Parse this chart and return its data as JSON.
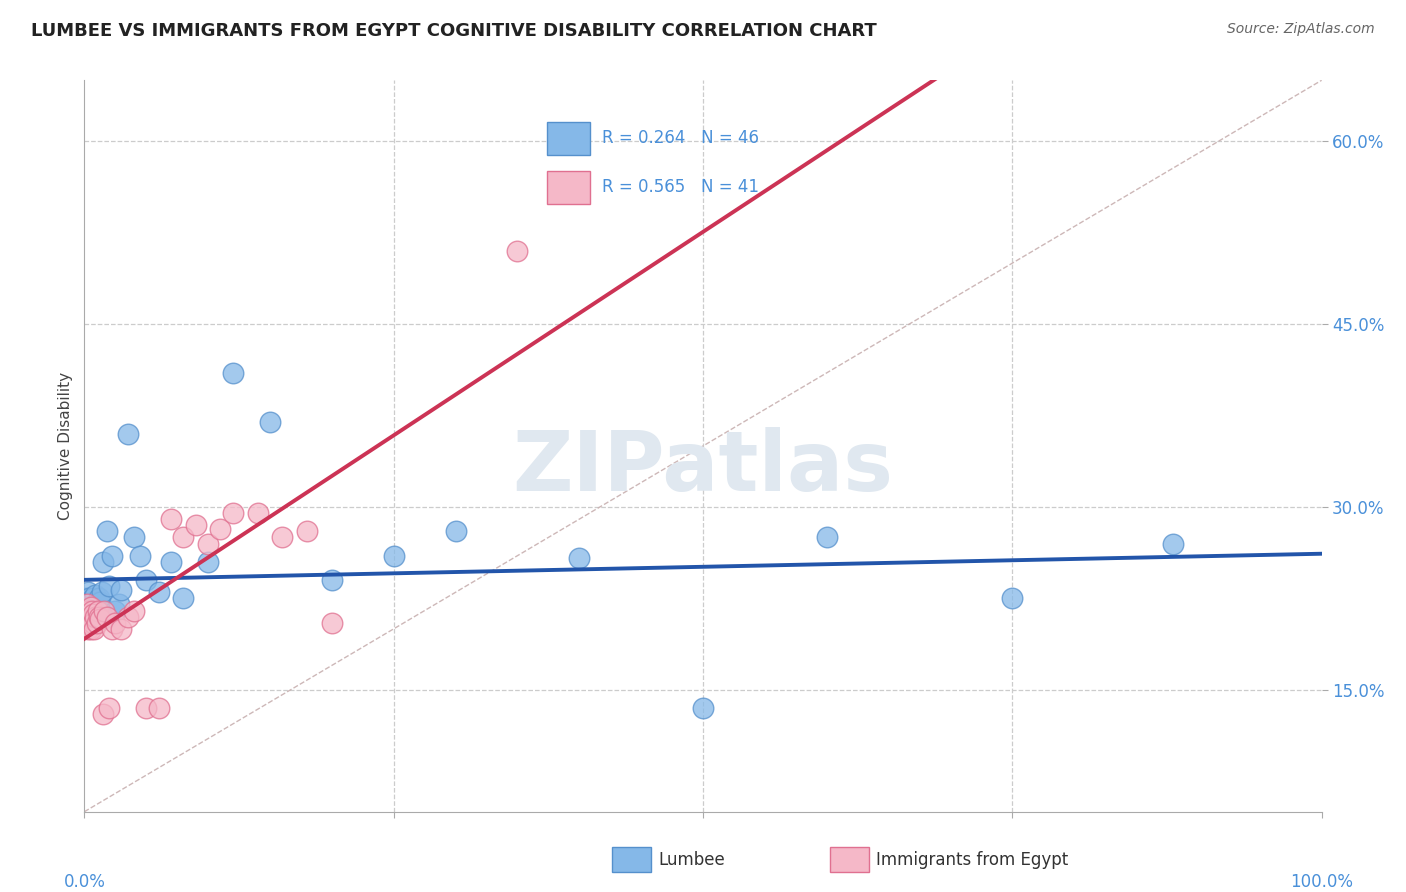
{
  "title": "LUMBEE VS IMMIGRANTS FROM EGYPT COGNITIVE DISABILITY CORRELATION CHART",
  "source": "Source: ZipAtlas.com",
  "ylabel": "Cognitive Disability",
  "background_color": "#ffffff",
  "grid_color": "#cccccc",
  "watermark_text": "ZIPatlas",
  "lumbee_color": "#85b8e8",
  "lumbee_edge_color": "#5590cc",
  "egypt_color": "#f5b8c8",
  "egypt_edge_color": "#e07090",
  "lumbee_line_color": "#2255aa",
  "egypt_line_color": "#cc3355",
  "diagonal_color": "#c8b0b0",
  "R_lumbee": 0.264,
  "N_lumbee": 46,
  "R_egypt": 0.565,
  "N_egypt": 41,
  "lumbee_x": [
    0.001,
    0.002,
    0.003,
    0.003,
    0.004,
    0.004,
    0.005,
    0.005,
    0.006,
    0.006,
    0.007,
    0.007,
    0.008,
    0.009,
    0.01,
    0.01,
    0.011,
    0.012,
    0.013,
    0.014,
    0.015,
    0.016,
    0.018,
    0.02,
    0.022,
    0.025,
    0.028,
    0.03,
    0.035,
    0.04,
    0.045,
    0.05,
    0.06,
    0.07,
    0.08,
    0.1,
    0.12,
    0.15,
    0.2,
    0.25,
    0.3,
    0.4,
    0.5,
    0.6,
    0.75,
    0.88
  ],
  "lumbee_y": [
    0.225,
    0.215,
    0.22,
    0.23,
    0.21,
    0.225,
    0.22,
    0.215,
    0.222,
    0.218,
    0.22,
    0.225,
    0.215,
    0.228,
    0.222,
    0.22,
    0.218,
    0.225,
    0.222,
    0.23,
    0.255,
    0.21,
    0.28,
    0.235,
    0.26,
    0.215,
    0.22,
    0.232,
    0.36,
    0.275,
    0.26,
    0.24,
    0.23,
    0.255,
    0.225,
    0.255,
    0.41,
    0.37,
    0.24,
    0.26,
    0.28,
    0.258,
    0.135,
    0.275,
    0.225,
    0.27
  ],
  "egypt_x": [
    0.001,
    0.002,
    0.002,
    0.003,
    0.003,
    0.004,
    0.004,
    0.005,
    0.005,
    0.006,
    0.006,
    0.007,
    0.007,
    0.008,
    0.009,
    0.01,
    0.011,
    0.012,
    0.013,
    0.015,
    0.016,
    0.018,
    0.02,
    0.022,
    0.025,
    0.03,
    0.035,
    0.04,
    0.05,
    0.06,
    0.07,
    0.08,
    0.09,
    0.1,
    0.11,
    0.12,
    0.14,
    0.16,
    0.18,
    0.2,
    0.35
  ],
  "egypt_y": [
    0.215,
    0.21,
    0.22,
    0.2,
    0.215,
    0.21,
    0.205,
    0.218,
    0.2,
    0.208,
    0.215,
    0.212,
    0.205,
    0.2,
    0.21,
    0.205,
    0.215,
    0.21,
    0.208,
    0.13,
    0.215,
    0.21,
    0.135,
    0.2,
    0.205,
    0.2,
    0.21,
    0.215,
    0.135,
    0.135,
    0.29,
    0.275,
    0.285,
    0.27,
    0.282,
    0.295,
    0.295,
    0.275,
    0.28,
    0.205,
    0.51
  ],
  "ylim": [
    0.05,
    0.65
  ],
  "xlim": [
    0.0,
    1.0
  ],
  "yticks": [
    0.15,
    0.3,
    0.45,
    0.6
  ],
  "ytick_labels": [
    "15.0%",
    "30.0%",
    "45.0%",
    "60.0%"
  ],
  "xticks": [
    0.0,
    0.25,
    0.5,
    0.75,
    1.0
  ]
}
